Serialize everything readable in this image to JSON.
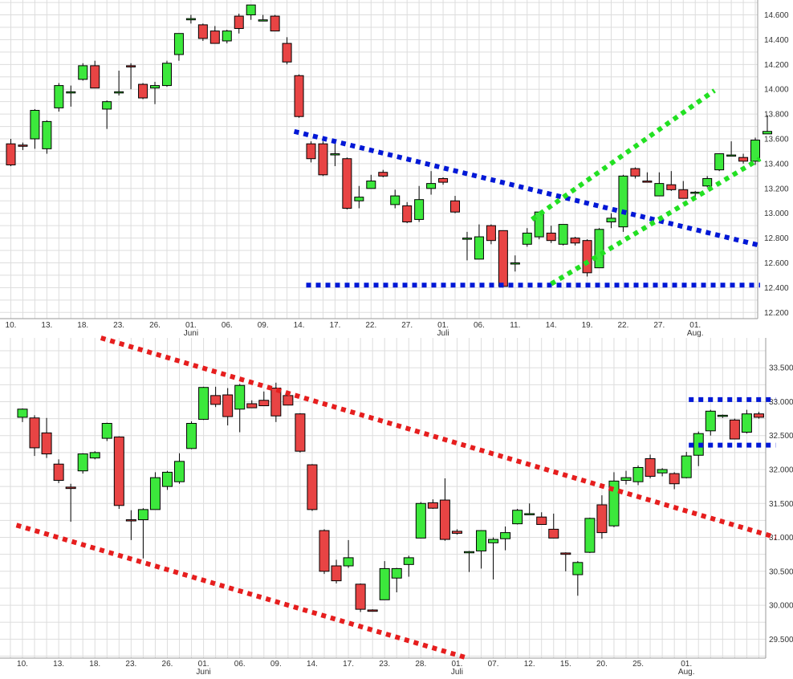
{
  "chart_data": [
    {
      "type": "candlestick",
      "title": "",
      "xlabel": "",
      "ylabel": "",
      "grid": true,
      "ylim": [
        12150,
        14720
      ],
      "y_ticks": [
        12200,
        12400,
        12600,
        12800,
        13000,
        13200,
        13400,
        13600,
        13800,
        14000,
        14200,
        14400,
        14600
      ],
      "y_tick_labels": [
        "12.200",
        "12.400",
        "12.600",
        "12.800",
        "13.000",
        "13.200",
        "13.400",
        "13.600",
        "13.800",
        "14.000",
        "14.200",
        "14.400",
        "14.600"
      ],
      "x_ticks": [
        {
          "i": 0,
          "label": "10."
        },
        {
          "i": 3,
          "label": "13."
        },
        {
          "i": 6,
          "label": "18."
        },
        {
          "i": 9,
          "label": "23."
        },
        {
          "i": 12,
          "label": "26."
        },
        {
          "i": 15,
          "label": "01.",
          "sub": "Juni"
        },
        {
          "i": 18,
          "label": "06."
        },
        {
          "i": 21,
          "label": "09."
        },
        {
          "i": 24,
          "label": "14."
        },
        {
          "i": 27,
          "label": "17."
        },
        {
          "i": 30,
          "label": "22."
        },
        {
          "i": 33,
          "label": "27."
        },
        {
          "i": 36,
          "label": "01.",
          "sub": "Juli"
        },
        {
          "i": 39,
          "label": "06."
        },
        {
          "i": 42,
          "label": "11."
        },
        {
          "i": 45,
          "label": "14."
        },
        {
          "i": 48,
          "label": "19."
        },
        {
          "i": 51,
          "label": "22."
        },
        {
          "i": 54,
          "label": "27."
        },
        {
          "i": 57,
          "label": "01.",
          "sub": "Aug."
        }
      ],
      "candles": [
        {
          "o": 13560,
          "h": 13600,
          "l": 13380,
          "c": 13390
        },
        {
          "o": 13550,
          "h": 13570,
          "l": 13510,
          "c": 13540
        },
        {
          "o": 13600,
          "h": 13840,
          "l": 13520,
          "c": 13830
        },
        {
          "o": 13520,
          "h": 13750,
          "l": 13480,
          "c": 13740
        },
        {
          "o": 13850,
          "h": 14050,
          "l": 13820,
          "c": 14030
        },
        {
          "o": 13970,
          "h": 14030,
          "l": 13860,
          "c": 13980
        },
        {
          "o": 14080,
          "h": 14210,
          "l": 14070,
          "c": 14190
        },
        {
          "o": 14190,
          "h": 14230,
          "l": 14010,
          "c": 14010
        },
        {
          "o": 13840,
          "h": 13910,
          "l": 13680,
          "c": 13900
        },
        {
          "o": 13970,
          "h": 14150,
          "l": 13950,
          "c": 13980
        },
        {
          "o": 14190,
          "h": 14210,
          "l": 14000,
          "c": 14180
        },
        {
          "o": 14040,
          "h": 14050,
          "l": 13920,
          "c": 13930
        },
        {
          "o": 14010,
          "h": 14060,
          "l": 13880,
          "c": 14030
        },
        {
          "o": 14030,
          "h": 14230,
          "l": 14020,
          "c": 14210
        },
        {
          "o": 14280,
          "h": 14450,
          "l": 14230,
          "c": 14450
        },
        {
          "o": 14560,
          "h": 14600,
          "l": 14530,
          "c": 14570
        },
        {
          "o": 14520,
          "h": 14530,
          "l": 14390,
          "c": 14410
        },
        {
          "o": 14470,
          "h": 14510,
          "l": 14380,
          "c": 14370
        },
        {
          "o": 14390,
          "h": 14480,
          "l": 14370,
          "c": 14470
        },
        {
          "o": 14590,
          "h": 14610,
          "l": 14450,
          "c": 14490
        },
        {
          "o": 14600,
          "h": 14680,
          "l": 14560,
          "c": 14680
        },
        {
          "o": 14560,
          "h": 14600,
          "l": 14550,
          "c": 14560
        },
        {
          "o": 14590,
          "h": 14600,
          "l": 14470,
          "c": 14470
        },
        {
          "o": 14370,
          "h": 14420,
          "l": 14200,
          "c": 14220
        },
        {
          "o": 14110,
          "h": 14120,
          "l": 13770,
          "c": 13780
        },
        {
          "o": 13560,
          "h": 13580,
          "l": 13410,
          "c": 13440
        },
        {
          "o": 13560,
          "h": 13580,
          "l": 13300,
          "c": 13310
        },
        {
          "o": 13480,
          "h": 13560,
          "l": 13380,
          "c": 13480
        },
        {
          "o": 13440,
          "h": 13450,
          "l": 13030,
          "c": 13040
        },
        {
          "o": 13100,
          "h": 13220,
          "l": 13040,
          "c": 13130
        },
        {
          "o": 13200,
          "h": 13310,
          "l": 13200,
          "c": 13260
        },
        {
          "o": 13330,
          "h": 13350,
          "l": 13290,
          "c": 13300
        },
        {
          "o": 13070,
          "h": 13190,
          "l": 13040,
          "c": 13140
        },
        {
          "o": 13060,
          "h": 13090,
          "l": 12920,
          "c": 12930
        },
        {
          "o": 12950,
          "h": 13220,
          "l": 12930,
          "c": 13110
        },
        {
          "o": 13200,
          "h": 13340,
          "l": 13150,
          "c": 13240
        },
        {
          "o": 13280,
          "h": 13290,
          "l": 13230,
          "c": 13250
        },
        {
          "o": 13100,
          "h": 13140,
          "l": 13000,
          "c": 13010
        },
        {
          "o": 12790,
          "h": 12850,
          "l": 12620,
          "c": 12800
        },
        {
          "o": 12630,
          "h": 12910,
          "l": 12630,
          "c": 12810
        },
        {
          "o": 12900,
          "h": 12910,
          "l": 12750,
          "c": 12780
        },
        {
          "o": 12860,
          "h": 12860,
          "l": 12400,
          "c": 12410
        },
        {
          "o": 12590,
          "h": 12660,
          "l": 12530,
          "c": 12600
        },
        {
          "o": 12750,
          "h": 12880,
          "l": 12730,
          "c": 12840
        },
        {
          "o": 12810,
          "h": 13010,
          "l": 12790,
          "c": 13010
        },
        {
          "o": 12840,
          "h": 12900,
          "l": 12760,
          "c": 12780
        },
        {
          "o": 12750,
          "h": 12910,
          "l": 12740,
          "c": 12910
        },
        {
          "o": 12800,
          "h": 12810,
          "l": 12740,
          "c": 12760
        },
        {
          "o": 12780,
          "h": 12790,
          "l": 12490,
          "c": 12520
        },
        {
          "o": 12560,
          "h": 12880,
          "l": 12560,
          "c": 12870
        },
        {
          "o": 12930,
          "h": 13000,
          "l": 12880,
          "c": 12960
        },
        {
          "o": 12890,
          "h": 13310,
          "l": 12850,
          "c": 13300
        },
        {
          "o": 13360,
          "h": 13370,
          "l": 13280,
          "c": 13300
        },
        {
          "o": 13260,
          "h": 13330,
          "l": 13250,
          "c": 13250
        },
        {
          "o": 13140,
          "h": 13330,
          "l": 13140,
          "c": 13240
        },
        {
          "o": 13230,
          "h": 13340,
          "l": 13180,
          "c": 13190
        },
        {
          "o": 13190,
          "h": 13260,
          "l": 13120,
          "c": 13120
        },
        {
          "o": 13170,
          "h": 13180,
          "l": 13110,
          "c": 13170
        },
        {
          "o": 13220,
          "h": 13300,
          "l": 13210,
          "c": 13280
        },
        {
          "o": 13350,
          "h": 13480,
          "l": 13340,
          "c": 13480
        },
        {
          "o": 13470,
          "h": 13580,
          "l": 13460,
          "c": 13470
        },
        {
          "o": 13450,
          "h": 13480,
          "l": 13400,
          "c": 13420
        },
        {
          "o": 13420,
          "h": 13610,
          "l": 13390,
          "c": 13590
        },
        {
          "o": 13640,
          "h": 13790,
          "l": 13640,
          "c": 13660
        }
      ],
      "trendlines": [
        {
          "color": "#0018d6",
          "points": [
            [
              23.6,
              13660
            ],
            [
              62.4,
              12740
            ]
          ]
        },
        {
          "color": "#0018d6",
          "points": [
            [
              24.6,
              12420
            ],
            [
              62.4,
              12420
            ]
          ]
        },
        {
          "color": "#22e022",
          "points": [
            [
              43.4,
              12950
            ],
            [
              58.6,
              13990
            ]
          ]
        },
        {
          "color": "#22e022",
          "points": [
            [
              45.0,
              12430
            ],
            [
              62.4,
              13440
            ]
          ]
        }
      ]
    },
    {
      "type": "candlestick",
      "title": "",
      "xlabel": "",
      "ylabel": "",
      "grid": true,
      "ylim": [
        29220,
        33940
      ],
      "y_ticks": [
        29500,
        30000,
        30500,
        31000,
        31500,
        32000,
        32500,
        33000,
        33500
      ],
      "y_tick_labels": [
        "29.500",
        "30.000",
        "30.500",
        "31.000",
        "31.500",
        "32.000",
        "32.500",
        "33.000",
        "33.500"
      ],
      "x_ticks": [
        {
          "i": 0,
          "label": "10."
        },
        {
          "i": 3,
          "label": "13."
        },
        {
          "i": 6,
          "label": "18."
        },
        {
          "i": 9,
          "label": "23."
        },
        {
          "i": 12,
          "label": "26."
        },
        {
          "i": 15,
          "label": "01.",
          "sub": "Juni"
        },
        {
          "i": 18,
          "label": "06."
        },
        {
          "i": 21,
          "label": "09."
        },
        {
          "i": 24,
          "label": "14."
        },
        {
          "i": 27,
          "label": "17."
        },
        {
          "i": 30,
          "label": "23."
        },
        {
          "i": 33,
          "label": "28."
        },
        {
          "i": 36,
          "label": "01.",
          "sub": "Juli"
        },
        {
          "i": 39,
          "label": "07."
        },
        {
          "i": 42,
          "label": "12."
        },
        {
          "i": 45,
          "label": "15."
        },
        {
          "i": 48,
          "label": "20."
        },
        {
          "i": 51,
          "label": "25."
        },
        {
          "i": 55,
          "label": "01.",
          "sub": "Aug."
        }
      ],
      "candles": [
        {
          "o": 32770,
          "h": 32900,
          "l": 32700,
          "c": 32890
        },
        {
          "o": 32760,
          "h": 32800,
          "l": 32200,
          "c": 32320
        },
        {
          "o": 32540,
          "h": 32760,
          "l": 32170,
          "c": 32230
        },
        {
          "o": 32080,
          "h": 32150,
          "l": 31800,
          "c": 31840
        },
        {
          "o": 31740,
          "h": 31790,
          "l": 31230,
          "c": 31720
        },
        {
          "o": 31980,
          "h": 32240,
          "l": 31940,
          "c": 32230
        },
        {
          "o": 32170,
          "h": 32270,
          "l": 32150,
          "c": 32250
        },
        {
          "o": 32460,
          "h": 32690,
          "l": 32420,
          "c": 32680
        },
        {
          "o": 32480,
          "h": 32490,
          "l": 31420,
          "c": 31470
        },
        {
          "o": 31260,
          "h": 31400,
          "l": 30960,
          "c": 31250
        },
        {
          "o": 31260,
          "h": 31430,
          "l": 30690,
          "c": 31410
        },
        {
          "o": 31410,
          "h": 31960,
          "l": 31410,
          "c": 31880
        },
        {
          "o": 31750,
          "h": 31980,
          "l": 31700,
          "c": 31960
        },
        {
          "o": 31820,
          "h": 32240,
          "l": 31790,
          "c": 32120
        },
        {
          "o": 32310,
          "h": 32710,
          "l": 32300,
          "c": 32680
        },
        {
          "o": 32740,
          "h": 33220,
          "l": 32730,
          "c": 33210
        },
        {
          "o": 33090,
          "h": 33220,
          "l": 32920,
          "c": 32960
        },
        {
          "o": 33100,
          "h": 33200,
          "l": 32650,
          "c": 32780
        },
        {
          "o": 32890,
          "h": 33260,
          "l": 32550,
          "c": 33240
        },
        {
          "o": 32970,
          "h": 33020,
          "l": 32910,
          "c": 32910
        },
        {
          "o": 33020,
          "h": 33150,
          "l": 32960,
          "c": 32940
        },
        {
          "o": 33200,
          "h": 33280,
          "l": 32700,
          "c": 32790
        },
        {
          "o": 33090,
          "h": 33120,
          "l": 32950,
          "c": 32950
        },
        {
          "o": 32820,
          "h": 32830,
          "l": 32250,
          "c": 32270
        },
        {
          "o": 32070,
          "h": 32080,
          "l": 31390,
          "c": 31410
        },
        {
          "o": 31100,
          "h": 31120,
          "l": 30460,
          "c": 30500
        },
        {
          "o": 30580,
          "h": 30670,
          "l": 30320,
          "c": 30360
        },
        {
          "o": 30580,
          "h": 30960,
          "l": 30550,
          "c": 30700
        },
        {
          "o": 30310,
          "h": 30320,
          "l": 29900,
          "c": 29940
        },
        {
          "o": 29930,
          "h": 29940,
          "l": 29910,
          "c": 29910
        },
        {
          "o": 30080,
          "h": 30650,
          "l": 30080,
          "c": 30540
        },
        {
          "o": 30400,
          "h": 30550,
          "l": 30190,
          "c": 30540
        },
        {
          "o": 30600,
          "h": 30730,
          "l": 30420,
          "c": 30700
        },
        {
          "o": 30990,
          "h": 31520,
          "l": 30990,
          "c": 31500
        },
        {
          "o": 31510,
          "h": 31560,
          "l": 31420,
          "c": 31430
        },
        {
          "o": 31550,
          "h": 31870,
          "l": 30950,
          "c": 30970
        },
        {
          "o": 31090,
          "h": 31120,
          "l": 31040,
          "c": 31060
        },
        {
          "o": 30790,
          "h": 30800,
          "l": 30490,
          "c": 30790
        },
        {
          "o": 30800,
          "h": 31100,
          "l": 30540,
          "c": 31100
        },
        {
          "o": 30920,
          "h": 31000,
          "l": 30380,
          "c": 30970
        },
        {
          "o": 30980,
          "h": 31160,
          "l": 30810,
          "c": 31070
        },
        {
          "o": 31200,
          "h": 31420,
          "l": 31190,
          "c": 31400
        },
        {
          "o": 31350,
          "h": 31500,
          "l": 31340,
          "c": 31350
        },
        {
          "o": 31300,
          "h": 31370,
          "l": 31190,
          "c": 31190
        },
        {
          "o": 31120,
          "h": 31350,
          "l": 31000,
          "c": 30990
        },
        {
          "o": 30770,
          "h": 30780,
          "l": 30500,
          "c": 30750
        },
        {
          "o": 30450,
          "h": 30650,
          "l": 30140,
          "c": 30630
        },
        {
          "o": 30780,
          "h": 31290,
          "l": 30770,
          "c": 31280
        },
        {
          "o": 31480,
          "h": 31620,
          "l": 30980,
          "c": 31070
        },
        {
          "o": 31170,
          "h": 31960,
          "l": 31150,
          "c": 31830
        },
        {
          "o": 31840,
          "h": 31980,
          "l": 31780,
          "c": 31880
        },
        {
          "o": 31820,
          "h": 32060,
          "l": 31770,
          "c": 32030
        },
        {
          "o": 32160,
          "h": 32220,
          "l": 31870,
          "c": 31900
        },
        {
          "o": 31950,
          "h": 32020,
          "l": 31900,
          "c": 32000
        },
        {
          "o": 31940,
          "h": 31960,
          "l": 31710,
          "c": 31790
        },
        {
          "o": 31880,
          "h": 32260,
          "l": 31870,
          "c": 32200
        },
        {
          "o": 32210,
          "h": 32560,
          "l": 32050,
          "c": 32530
        },
        {
          "o": 32570,
          "h": 32880,
          "l": 32500,
          "c": 32860
        },
        {
          "o": 32800,
          "h": 32810,
          "l": 32760,
          "c": 32800
        },
        {
          "o": 32730,
          "h": 32750,
          "l": 32470,
          "c": 32450
        },
        {
          "o": 32550,
          "h": 32880,
          "l": 32530,
          "c": 32820
        },
        {
          "o": 32820,
          "h": 32850,
          "l": 32750,
          "c": 32770
        }
      ],
      "trendlines": [
        {
          "color": "#e61e1e",
          "points": [
            [
              6.5,
              33940
            ],
            [
              62.4,
              31000
            ]
          ]
        },
        {
          "color": "#e61e1e",
          "points": [
            [
              -0.5,
              31180
            ],
            [
              36.7,
              29230
            ]
          ]
        },
        {
          "color": "#0018d6",
          "points": [
            [
              55.2,
              33030
            ],
            [
              62.4,
              33030
            ]
          ]
        },
        {
          "color": "#0018d6",
          "points": [
            [
              55.2,
              32360
            ],
            [
              62.4,
              32360
            ]
          ]
        }
      ]
    }
  ],
  "colors": {
    "up": "#3ce83c",
    "down": "#e84444",
    "grid": "#dddddd",
    "outline": "#000000"
  }
}
